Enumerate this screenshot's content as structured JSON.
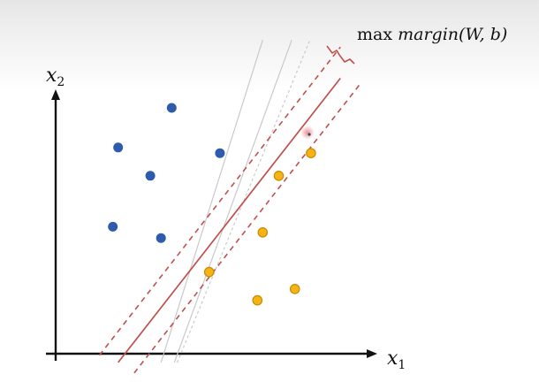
{
  "title": {
    "op": "max",
    "expr": "margin(W, b)"
  },
  "axes": {
    "x_var": "x",
    "x_sub": "1",
    "y_var": "x",
    "y_sub": "2"
  },
  "colors": {
    "class_a": "#2e5bab",
    "class_b": "#f5b315",
    "class_b_stroke": "#c98b00",
    "hyperplane": "#c0504d",
    "candidate_lines": "#c9c9c9",
    "axis": "#111111"
  },
  "chart_data": {
    "type": "scatter",
    "series": [
      {
        "points": [
          {
            "x": 1.2,
            "y": 4.3
          },
          {
            "x": 2.2,
            "y": 5.0
          },
          {
            "x": 1.8,
            "y": 3.8
          },
          {
            "x": 1.1,
            "y": 2.9
          },
          {
            "x": 2.0,
            "y": 2.7
          },
          {
            "x": 3.1,
            "y": 4.2
          }
        ]
      },
      {
        "points": [
          {
            "x": 4.8,
            "y": 4.2
          },
          {
            "x": 4.2,
            "y": 3.8
          },
          {
            "x": 3.9,
            "y": 2.8
          },
          {
            "x": 2.9,
            "y": 2.1
          },
          {
            "x": 4.5,
            "y": 1.8
          },
          {
            "x": 3.8,
            "y": 1.6
          }
        ]
      }
    ],
    "hyperplane": {
      "slope": 1.21,
      "intercept": -0.95
    },
    "margin_offset": 0.55,
    "alt_lines": [
      {
        "slope": 2.6,
        "intercept": -5.35
      },
      {
        "slope": 2.3,
        "intercept": -4.8
      },
      {
        "slope": 3.0,
        "intercept": -5.5
      }
    ]
  }
}
